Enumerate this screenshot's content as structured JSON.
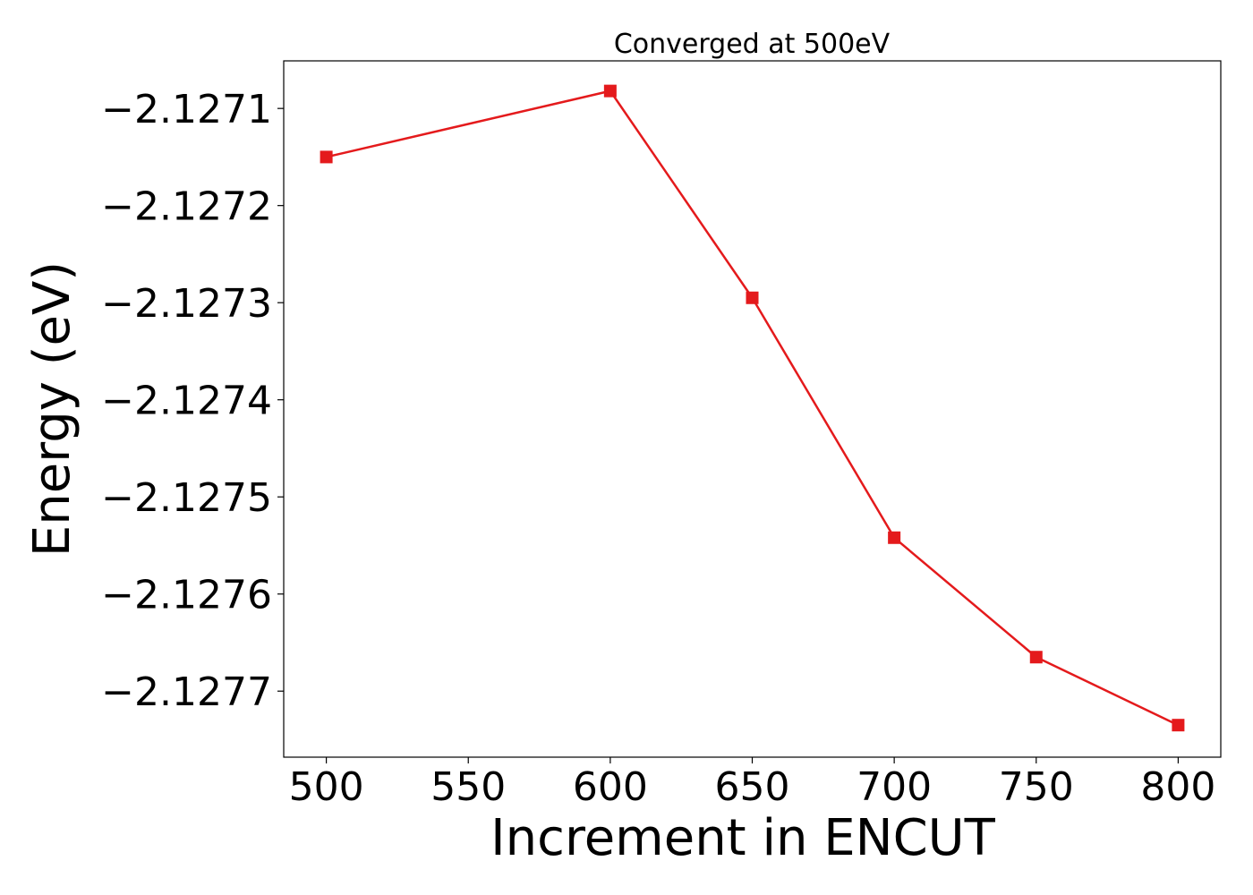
{
  "chart_data": {
    "type": "line",
    "title": "Converged at 500eV",
    "xlabel": "Increment in ENCUT",
    "ylabel": "Energy (eV)",
    "x": [
      500,
      600,
      650,
      700,
      750,
      800
    ],
    "series": [
      {
        "values": [
          -2.12715,
          -2.127082,
          -2.127295,
          -2.127542,
          -2.127665,
          -2.127735
        ],
        "color": "#e41a1c",
        "marker": "square"
      }
    ],
    "xlim": [
      485,
      815
    ],
    "ylim": [
      -2.127768,
      -2.127051
    ],
    "xticks": [
      500,
      550,
      600,
      650,
      700,
      750,
      800
    ],
    "xtick_labels": [
      "500",
      "550",
      "600",
      "650",
      "700",
      "750",
      "800"
    ],
    "yticks": [
      -2.1271,
      -2.1272,
      -2.1273,
      -2.1274,
      -2.1275,
      -2.1276,
      -2.1277
    ],
    "ytick_labels": [
      "−2.1271",
      "−2.1272",
      "−2.1273",
      "−2.1274",
      "−2.1275",
      "−2.1276",
      "−2.1277"
    ],
    "grid": false,
    "legend": "none"
  }
}
